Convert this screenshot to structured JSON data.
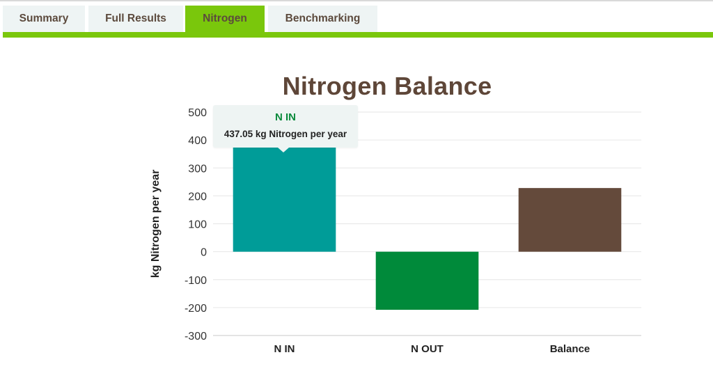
{
  "tabs": [
    {
      "label": "Summary",
      "active": false
    },
    {
      "label": "Full Results",
      "active": false
    },
    {
      "label": "Nitrogen",
      "active": true
    },
    {
      "label": "Benchmarking",
      "active": false
    }
  ],
  "colors": {
    "accent": "#7ac70c",
    "title": "#5e4638",
    "n_in": "#009c98",
    "n_out": "#008a3a",
    "balance": "#644a3b"
  },
  "tooltip": {
    "title": "N IN",
    "value": "437.05 kg Nitrogen per year"
  },
  "chart_data": {
    "type": "bar",
    "title": "Nitrogen Balance",
    "xlabel": "",
    "ylabel": "kg Nitrogen per year",
    "categories": [
      "N IN",
      "N OUT",
      "Balance"
    ],
    "values": [
      437.05,
      -208,
      228
    ],
    "colors": [
      "#009c98",
      "#008a3a",
      "#644a3b"
    ],
    "ylim": [
      -300,
      500
    ],
    "yticks": [
      500,
      400,
      300,
      200,
      100,
      0,
      -100,
      -200,
      -300
    ],
    "grid": true
  }
}
